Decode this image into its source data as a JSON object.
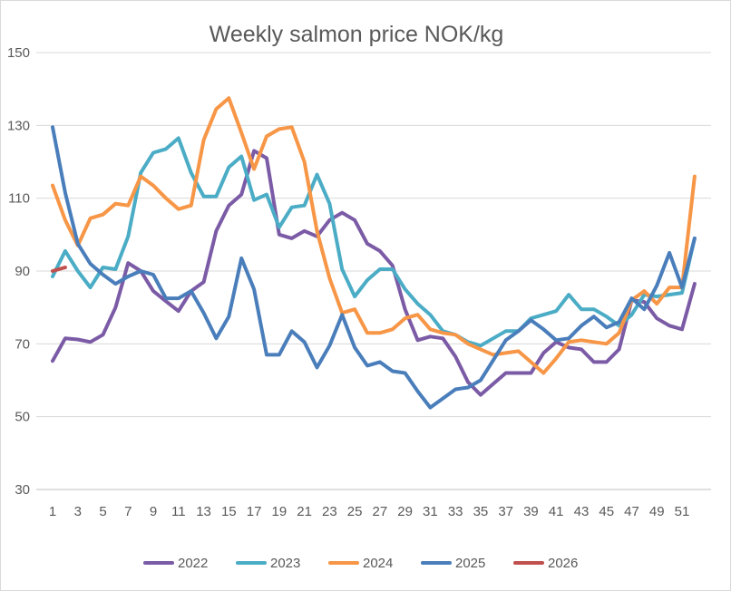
{
  "chart_data": {
    "type": "line",
    "title": "Weekly salmon price NOK/kg",
    "xlabel": "",
    "ylabel": "",
    "ylim": [
      30,
      150
    ],
    "yticks": [
      30,
      50,
      70,
      90,
      110,
      130,
      150
    ],
    "xlim": [
      1,
      52
    ],
    "xticks": [
      1,
      3,
      5,
      7,
      9,
      11,
      13,
      15,
      17,
      19,
      21,
      23,
      25,
      27,
      29,
      31,
      33,
      35,
      37,
      39,
      41,
      43,
      45,
      47,
      49,
      51
    ],
    "grid": true,
    "legend_position": "bottom",
    "series": [
      {
        "name": "2022",
        "color": "#7b5ba6",
        "x": [
          1,
          2,
          3,
          4,
          5,
          6,
          7,
          8,
          9,
          10,
          11,
          12,
          13,
          14,
          15,
          16,
          17,
          18,
          19,
          20,
          21,
          22,
          23,
          24,
          25,
          26,
          27,
          28,
          29,
          30,
          31,
          32,
          33,
          34,
          35,
          36,
          37,
          38,
          39,
          40,
          41,
          42,
          43,
          44,
          45,
          46,
          47,
          48,
          49,
          50,
          51,
          52
        ],
        "values": [
          65.3,
          71.5,
          71.2,
          70.5,
          72.5,
          80,
          92.2,
          90,
          84.5,
          81.7,
          79,
          84.5,
          87,
          101,
          108,
          111,
          123,
          121,
          100,
          99,
          101,
          99.5,
          104,
          106,
          104,
          97.5,
          95.5,
          91.5,
          79.5,
          71,
          72,
          71.5,
          66.5,
          59.5,
          56,
          59,
          62,
          62,
          62,
          67.5,
          70.5,
          69,
          68.5,
          65,
          65,
          68.5,
          82,
          81.5,
          77,
          75,
          74,
          86.5
        ]
      },
      {
        "name": "2023",
        "color": "#4bacc6",
        "x": [
          1,
          2,
          3,
          4,
          5,
          6,
          7,
          8,
          9,
          10,
          11,
          12,
          13,
          14,
          15,
          16,
          17,
          18,
          19,
          20,
          21,
          22,
          23,
          24,
          25,
          26,
          27,
          28,
          29,
          30,
          31,
          32,
          33,
          34,
          35,
          36,
          37,
          38,
          39,
          40,
          41,
          42,
          43,
          44,
          45,
          46,
          47,
          48,
          49,
          50,
          51,
          52
        ],
        "values": [
          88.5,
          95.5,
          90,
          85.5,
          91,
          90.5,
          99.5,
          117,
          122.5,
          123.5,
          126.5,
          117,
          110.5,
          110.5,
          118.5,
          121.5,
          109.5,
          111,
          102,
          107.5,
          108,
          116.5,
          108.5,
          90.5,
          83,
          87.5,
          90.5,
          90.5,
          85,
          81,
          78,
          73.5,
          72.5,
          70.5,
          69.5,
          71.5,
          73.5,
          73.5,
          77,
          78,
          79,
          83.5,
          79.5,
          79.5,
          77.5,
          75,
          78,
          83.5,
          83,
          83.5,
          84,
          99
        ]
      },
      {
        "name": "2024",
        "color": "#f79646",
        "x": [
          1,
          2,
          3,
          4,
          5,
          6,
          7,
          8,
          9,
          10,
          11,
          12,
          13,
          14,
          15,
          16,
          17,
          18,
          19,
          20,
          21,
          22,
          23,
          24,
          25,
          26,
          27,
          28,
          29,
          30,
          31,
          32,
          33,
          34,
          35,
          36,
          37,
          38,
          39,
          40,
          41,
          42,
          43,
          44,
          45,
          46,
          47,
          48,
          49,
          50,
          51,
          52
        ],
        "values": [
          113.5,
          104,
          97,
          104.5,
          105.5,
          108.5,
          108,
          116,
          113.5,
          110,
          107,
          108,
          126,
          134.5,
          137.5,
          128,
          118,
          127,
          129,
          129.5,
          120,
          101,
          88,
          78.5,
          79.5,
          73,
          73,
          74,
          77,
          78,
          74,
          73,
          72.5,
          70,
          68.5,
          67,
          67.5,
          68,
          65,
          62,
          66,
          70.5,
          71,
          70.5,
          70,
          73,
          82,
          84.5,
          81,
          85.5,
          85.5,
          116
        ]
      },
      {
        "name": "2025",
        "color": "#4a7ebb",
        "x": [
          1,
          2,
          3,
          4,
          5,
          6,
          7,
          8,
          9,
          10,
          11,
          12,
          13,
          14,
          15,
          16,
          17,
          18,
          19,
          20,
          21,
          22,
          23,
          24,
          25,
          26,
          27,
          28,
          29,
          30,
          31,
          32,
          33,
          34,
          35,
          36,
          37,
          38,
          39,
          40,
          41,
          42,
          43,
          44,
          45,
          46,
          47,
          48,
          49,
          50,
          51,
          52
        ],
        "values": [
          129.5,
          111.5,
          97.5,
          92,
          89,
          86.5,
          88.5,
          90,
          89,
          82.5,
          82.5,
          84.5,
          78.5,
          71.5,
          77.5,
          93.5,
          85,
          67,
          67,
          73.5,
          70.5,
          63.5,
          69.5,
          78,
          69,
          64,
          65,
          62.5,
          62,
          57,
          52.5,
          55,
          57.5,
          58,
          60,
          65.5,
          71,
          73.5,
          76.5,
          74,
          71,
          71.5,
          75,
          77.5,
          74.5,
          76,
          82.5,
          79.5,
          86,
          95,
          85.5,
          99
        ]
      },
      {
        "name": "2026",
        "color": "#c0504d",
        "x": [
          1,
          2
        ],
        "values": [
          90,
          91
        ]
      }
    ]
  }
}
